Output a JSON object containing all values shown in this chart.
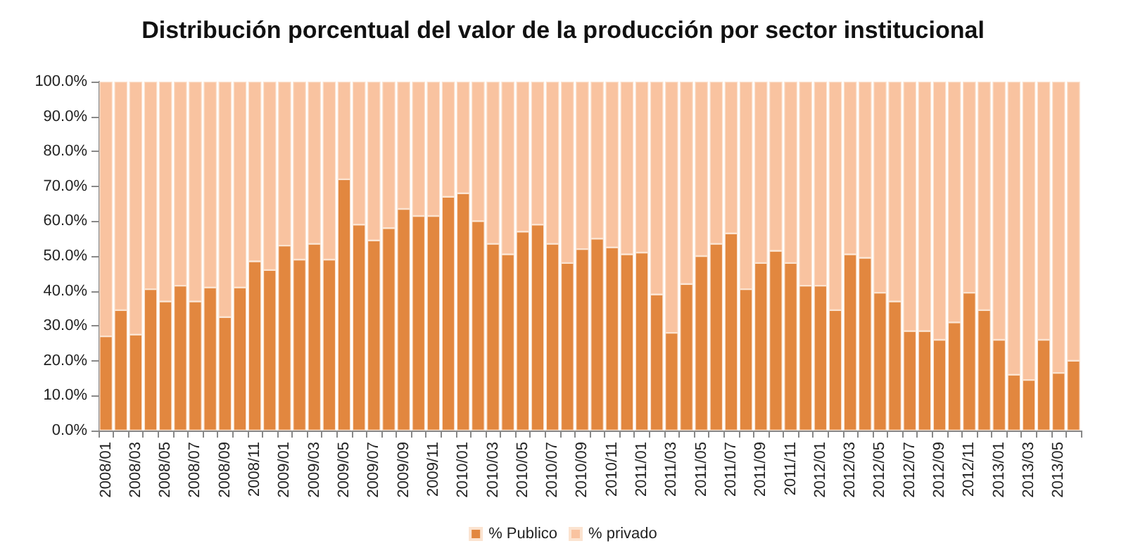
{
  "chart_data": {
    "type": "bar",
    "title": "Distribución porcentual del valor de la producción por sector institucional",
    "stacked": true,
    "categories": [
      "2008/01",
      null,
      "2008/03",
      null,
      "2008/05",
      null,
      "2008/07",
      null,
      "2008/09",
      null,
      "2008/11",
      null,
      "2009/01",
      null,
      "2009/03",
      null,
      "2009/05",
      null,
      "2009/07",
      null,
      "2009/09",
      null,
      "2009/11",
      null,
      "2010/01",
      null,
      "2010/03",
      null,
      "2010/05",
      null,
      "2010/07",
      null,
      "2010/09",
      null,
      "2010/11",
      null,
      "2011/01",
      null,
      "2011/03",
      null,
      "2011/05",
      null,
      "2011/07",
      null,
      "2011/09",
      null,
      "2011/11",
      null,
      "2012/01",
      null,
      "2012/03",
      null,
      "2012/05",
      null,
      "2012/07",
      null,
      "2012/09",
      null,
      "2012/11",
      null,
      "2013/01",
      null,
      "2013/03",
      null,
      "2013/05",
      null
    ],
    "series": [
      {
        "name": "% Publico",
        "color": "#e2873f",
        "values": [
          27,
          34.5,
          27.5,
          40.5,
          37,
          41.5,
          37,
          41,
          32.5,
          41,
          48.5,
          46,
          53,
          49,
          53.5,
          49,
          72,
          59,
          54.5,
          58,
          63.5,
          61.5,
          61.5,
          67,
          68,
          60,
          53.5,
          50.5,
          57,
          59,
          53.5,
          48,
          52,
          55,
          52.5,
          50.5,
          51,
          39,
          28,
          42,
          50,
          53.5,
          56.5,
          40.5,
          48,
          51.5,
          48,
          41.5,
          41.5,
          34.5,
          50.5,
          49.5,
          39.5,
          37,
          28.5,
          28.5,
          26,
          31,
          39.5,
          34.5,
          26,
          16,
          14.5,
          26,
          16.5,
          20
        ]
      },
      {
        "name": "% privado",
        "color": "#f9c3a0",
        "values": [
          73,
          65.5,
          72.5,
          59.5,
          63,
          58.5,
          63,
          59,
          67.5,
          59,
          51.5,
          54,
          47,
          51,
          46.5,
          51,
          28,
          41,
          45.5,
          42,
          36.5,
          38.5,
          38.5,
          33,
          32,
          40,
          46.5,
          49.5,
          43,
          41,
          46.5,
          52,
          48,
          45,
          47.5,
          49.5,
          49,
          61,
          72,
          58,
          50,
          46.5,
          43.5,
          59.5,
          52,
          48.5,
          52,
          58.5,
          58.5,
          65.5,
          49.5,
          50.5,
          60.5,
          63,
          71.5,
          71.5,
          74,
          69,
          60.5,
          65.5,
          74,
          84,
          85.5,
          74,
          83.5,
          80
        ]
      }
    ],
    "ylim": [
      0,
      100
    ],
    "yticks": [
      {
        "value": 0,
        "label": "0.0%"
      },
      {
        "value": 10,
        "label": "10.0%"
      },
      {
        "value": 20,
        "label": "20.0%"
      },
      {
        "value": 30,
        "label": "30.0%"
      },
      {
        "value": 40,
        "label": "40.0%"
      },
      {
        "value": 50,
        "label": "50.0%"
      },
      {
        "value": 60,
        "label": "60.0%"
      },
      {
        "value": 70,
        "label": "70.0%"
      },
      {
        "value": 80,
        "label": "80.0%"
      },
      {
        "value": 90,
        "label": "90.0%"
      },
      {
        "value": 100,
        "label": "100.0%"
      }
    ],
    "grid": false,
    "legend": "bottom"
  }
}
